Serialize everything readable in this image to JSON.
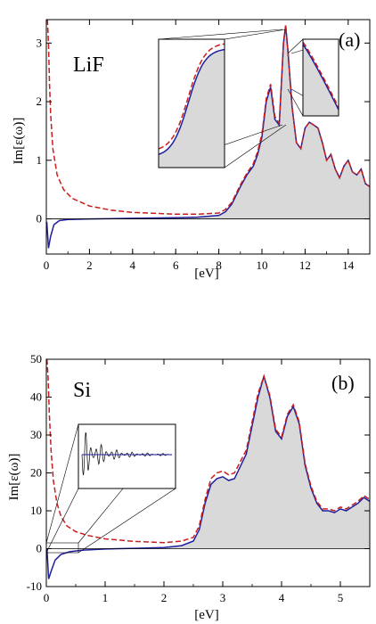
{
  "chart_data": [
    {
      "type": "line",
      "panel_label": "(a)",
      "annotation": "LiF",
      "xlabel": "[eV]",
      "ylabel": "Im[ε(ω)]",
      "xlim": [
        0,
        15
      ],
      "ylim": [
        -0.6,
        3.4
      ],
      "xticks": [
        0,
        2,
        4,
        6,
        8,
        10,
        12,
        14
      ],
      "yticks": [
        0,
        1,
        2,
        3
      ],
      "fill_color": "#d9d9d9",
      "series": [
        {
          "style": "solid",
          "color": "#1f1f9e",
          "x": [
            0.02,
            0.1,
            0.2,
            0.35,
            0.6,
            1,
            2,
            4,
            6,
            7,
            8,
            8.3,
            8.6,
            9.0,
            9.3,
            9.6,
            9.8,
            10.0,
            10.2,
            10.4,
            10.6,
            10.8,
            11.0,
            11.1,
            11.2,
            11.4,
            11.6,
            11.8,
            12.0,
            12.2,
            12.4,
            12.6,
            12.8,
            13.0,
            13.2,
            13.4,
            13.6,
            13.8,
            14.0,
            14.2,
            14.4,
            14.6,
            14.8,
            15.0
          ],
          "y": [
            -0.05,
            -0.5,
            -0.3,
            -0.1,
            -0.03,
            -0.01,
            0.0,
            0.01,
            0.02,
            0.03,
            0.06,
            0.12,
            0.25,
            0.55,
            0.75,
            0.9,
            1.1,
            1.4,
            2.0,
            2.25,
            1.7,
            1.6,
            3.0,
            3.3,
            2.9,
            1.9,
            1.3,
            1.2,
            1.55,
            1.65,
            1.6,
            1.55,
            1.3,
            1.0,
            1.1,
            0.85,
            0.7,
            0.9,
            1.0,
            0.8,
            0.75,
            0.85,
            0.6,
            0.55
          ]
        },
        {
          "style": "dashed",
          "color": "#c81e1e",
          "x": [
            0.05,
            0.1,
            0.15,
            0.2,
            0.3,
            0.5,
            0.8,
            1.2,
            2,
            3,
            4,
            6,
            7,
            8,
            8.3,
            8.6,
            9.0,
            9.3,
            9.6,
            9.8,
            10.0,
            10.2,
            10.4,
            10.6,
            10.8,
            11.0,
            11.1,
            11.2,
            11.4,
            11.6,
            11.8,
            12.0,
            12.2,
            12.4,
            12.6,
            12.8,
            13.0,
            13.2,
            13.4,
            13.6,
            13.8,
            14.0,
            14.2,
            14.4,
            14.6,
            14.8,
            15.0
          ],
          "y": [
            3.4,
            3.0,
            2.3,
            1.8,
            1.2,
            0.75,
            0.5,
            0.35,
            0.22,
            0.15,
            0.11,
            0.08,
            0.08,
            0.1,
            0.16,
            0.28,
            0.58,
            0.78,
            0.94,
            1.15,
            1.45,
            2.05,
            2.3,
            1.75,
            1.63,
            3.02,
            3.3,
            2.88,
            1.9,
            1.3,
            1.2,
            1.55,
            1.65,
            1.6,
            1.55,
            1.3,
            1.0,
            1.1,
            0.85,
            0.7,
            0.9,
            1.0,
            0.8,
            0.75,
            0.85,
            0.6,
            0.55
          ]
        }
      ]
    },
    {
      "type": "line",
      "panel_label": "(b)",
      "annotation": "Si",
      "xlabel": "[eV]",
      "ylabel": "Im[ε(ω)]",
      "xlim": [
        0,
        5.5
      ],
      "ylim": [
        -10,
        50
      ],
      "xticks": [
        0,
        1,
        2,
        3,
        4,
        5
      ],
      "yticks": [
        -10,
        0,
        10,
        20,
        30,
        40,
        50
      ],
      "fill_color": "#d9d9d9",
      "series": [
        {
          "style": "solid",
          "color": "#1f1f9e",
          "x": [
            0.01,
            0.04,
            0.08,
            0.15,
            0.25,
            0.4,
            0.6,
            1,
            1.5,
            2,
            2.3,
            2.5,
            2.6,
            2.7,
            2.8,
            2.9,
            3.0,
            3.1,
            3.2,
            3.4,
            3.6,
            3.7,
            3.8,
            3.9,
            4.0,
            4.1,
            4.2,
            4.3,
            4.4,
            4.5,
            4.6,
            4.7,
            4.8,
            4.9,
            5.0,
            5.1,
            5.2,
            5.3,
            5.4,
            5.5
          ],
          "y": [
            0,
            -8,
            -6,
            -3,
            -1.5,
            -0.8,
            -0.4,
            -0.1,
            0.1,
            0.3,
            0.8,
            2,
            5,
            12,
            17,
            18.5,
            19,
            18,
            18.5,
            25,
            40,
            45.5,
            40,
            31,
            29,
            35,
            37.5,
            33,
            22,
            16,
            12,
            10,
            10,
            9.5,
            10.5,
            10,
            11,
            12,
            13.5,
            12.5
          ]
        },
        {
          "style": "dashed",
          "color": "#c81e1e",
          "x": [
            0.01,
            0.03,
            0.05,
            0.08,
            0.12,
            0.18,
            0.25,
            0.35,
            0.5,
            0.7,
            1,
            1.5,
            2,
            2.3,
            2.5,
            2.6,
            2.7,
            2.8,
            2.9,
            3.0,
            3.1,
            3.2,
            3.4,
            3.6,
            3.7,
            3.8,
            3.9,
            4.0,
            4.1,
            4.2,
            4.3,
            4.4,
            4.5,
            4.6,
            4.7,
            4.8,
            4.9,
            5.0,
            5.1,
            5.2,
            5.3,
            5.4,
            5.5
          ],
          "y": [
            50,
            45,
            36,
            26,
            18,
            12,
            8.5,
            6,
            4.5,
            3.5,
            2.6,
            1.9,
            1.6,
            2,
            3,
            6,
            13,
            18.5,
            20,
            20.5,
            19.5,
            20,
            26,
            41,
            45.5,
            40.5,
            31.5,
            29.5,
            35.5,
            38,
            33.5,
            22.5,
            16.5,
            12.5,
            10.5,
            10.5,
            10,
            11,
            10.5,
            11.5,
            12.5,
            14,
            13
          ]
        }
      ]
    }
  ]
}
